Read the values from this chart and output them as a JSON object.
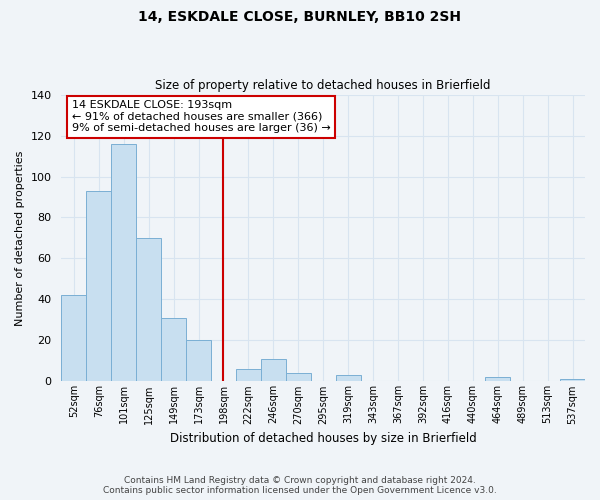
{
  "title": "14, ESKDALE CLOSE, BURNLEY, BB10 2SH",
  "subtitle": "Size of property relative to detached houses in Brierfield",
  "xlabel": "Distribution of detached houses by size in Brierfield",
  "ylabel": "Number of detached properties",
  "bar_labels": [
    "52sqm",
    "76sqm",
    "101sqm",
    "125sqm",
    "149sqm",
    "173sqm",
    "198sqm",
    "222sqm",
    "246sqm",
    "270sqm",
    "295sqm",
    "319sqm",
    "343sqm",
    "367sqm",
    "392sqm",
    "416sqm",
    "440sqm",
    "464sqm",
    "489sqm",
    "513sqm",
    "537sqm"
  ],
  "bar_values": [
    42,
    93,
    116,
    70,
    31,
    20,
    0,
    6,
    11,
    4,
    0,
    3,
    0,
    0,
    0,
    0,
    0,
    2,
    0,
    0,
    1
  ],
  "bar_color": "#c8dff0",
  "bar_edge_color": "#7aafd4",
  "vline_index": 6,
  "vline_color": "#cc0000",
  "annotation_title": "14 ESKDALE CLOSE: 193sqm",
  "annotation_line1": "← 91% of detached houses are smaller (366)",
  "annotation_line2": "9% of semi-detached houses are larger (36) →",
  "annotation_box_color": "#ffffff",
  "annotation_border_color": "#cc0000",
  "ylim": [
    0,
    140
  ],
  "yticks": [
    0,
    20,
    40,
    60,
    80,
    100,
    120,
    140
  ],
  "footer_line1": "Contains HM Land Registry data © Crown copyright and database right 2024.",
  "footer_line2": "Contains public sector information licensed under the Open Government Licence v3.0.",
  "bg_color": "#f0f4f8",
  "grid_color": "#d8e4f0",
  "title_fontsize": 10,
  "subtitle_fontsize": 8.5
}
